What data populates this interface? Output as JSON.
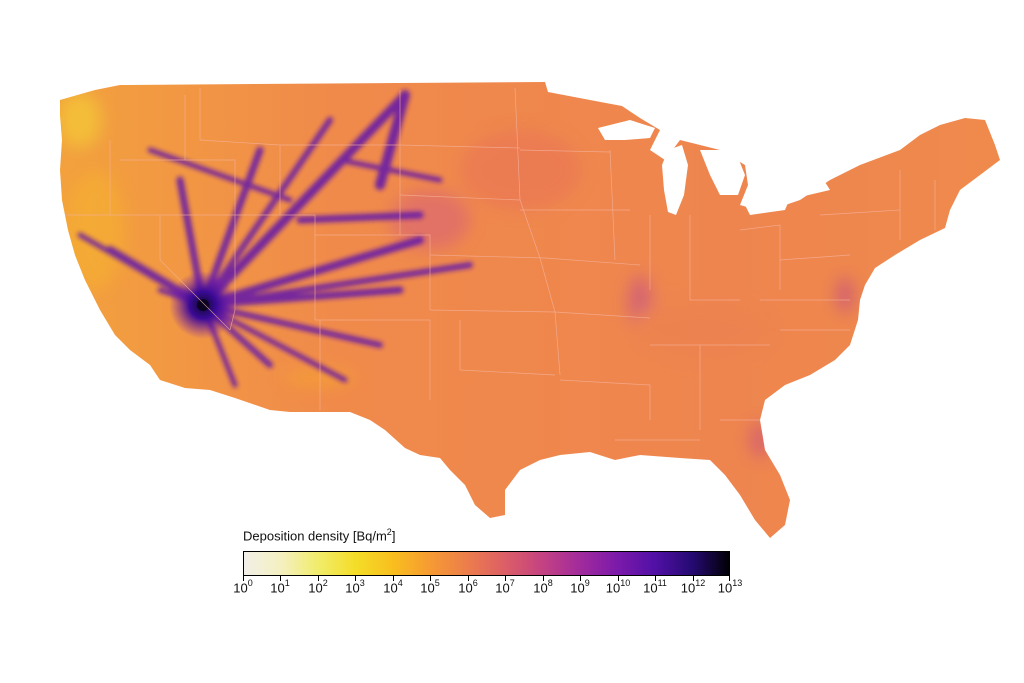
{
  "colorbar": {
    "title": "Deposition density [Bq/m",
    "title_exp": "2",
    "title_close": "]",
    "base": "10",
    "exponents": [
      "0",
      "1",
      "2",
      "3",
      "4",
      "5",
      "6",
      "7",
      "8",
      "9",
      "10",
      "11",
      "12",
      "13"
    ],
    "stops": [
      "#f2efe8",
      "#f4f0c0",
      "#f1ec6a",
      "#f4dd28",
      "#f9be1e",
      "#f69a33",
      "#ec7d4c",
      "#dc5e66",
      "#c44282",
      "#a22b9c",
      "#7c1aaa",
      "#5210a6",
      "#260a73",
      "#000004"
    ]
  },
  "map": {
    "land_color": "#f08a4b",
    "border_color": "#f6b19a",
    "plume_color": "#5a13a8",
    "hot_color": "#f7c63a"
  }
}
